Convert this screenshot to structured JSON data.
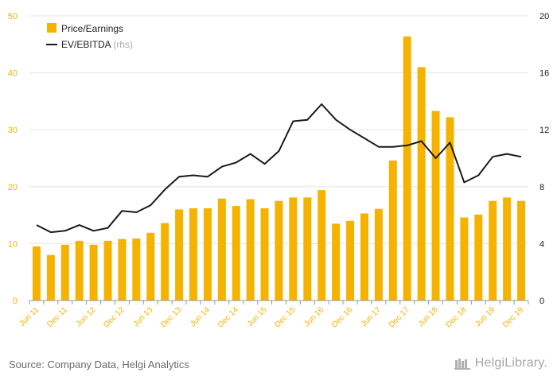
{
  "chart_data": {
    "type": "bar",
    "categories": [
      "Jun 11",
      "Sep 11",
      "Dec 11",
      "Mar 12",
      "Jun 12",
      "Sep 12",
      "Dec 12",
      "Mar 13",
      "Jun 13",
      "Sep 13",
      "Dec 13",
      "Mar 14",
      "Jun 14",
      "Sep 14",
      "Dec 14",
      "Mar 15",
      "Jun 15",
      "Sep 15",
      "Dec 15",
      "Mar 16",
      "Jun 16",
      "Sep 16",
      "Dec 16",
      "Mar 17",
      "Jun 17",
      "Sep 17",
      "Dec 17",
      "Mar 18",
      "Jun 18",
      "Sep 18",
      "Dec 18",
      "Mar 19",
      "Jun 19",
      "Sep 19",
      "Dec 19"
    ],
    "tick_labels": [
      "Jun 11",
      "",
      "Dec 11",
      "",
      "Jun 12",
      "",
      "Dec 12",
      "",
      "Jun 13",
      "",
      "Dec 13",
      "",
      "Jun 14",
      "",
      "Dec 14",
      "",
      "Jun 15",
      "",
      "Dec 15",
      "",
      "Jun 16",
      "",
      "Dec 16",
      "",
      "Jun 17",
      "",
      "Dec 17",
      "",
      "Jun 18",
      "",
      "Dec 18",
      "",
      "Jun 19",
      "",
      "Dec 19"
    ],
    "series": [
      {
        "name": "Price/Earnings",
        "type": "bar",
        "axis": "left",
        "color": "#f5b300",
        "values": [
          9.5,
          8.0,
          9.8,
          10.5,
          9.8,
          10.5,
          10.8,
          10.9,
          11.9,
          13.6,
          16.0,
          16.2,
          16.2,
          17.9,
          16.6,
          17.8,
          16.2,
          17.5,
          18.1,
          18.1,
          19.4,
          13.5,
          14.0,
          15.3,
          16.1,
          24.6,
          46.4,
          41.0,
          33.3,
          32.2,
          14.6,
          15.1,
          17.5,
          18.1,
          17.5
        ]
      },
      {
        "name": "EV/EBITDA",
        "suffix": "(rhs)",
        "type": "line",
        "axis": "right",
        "color": "#1a1a1a",
        "values": [
          5.3,
          4.8,
          4.9,
          5.3,
          4.9,
          5.1,
          6.3,
          6.2,
          6.7,
          7.8,
          8.7,
          8.8,
          8.7,
          9.4,
          9.7,
          10.3,
          9.6,
          10.5,
          12.6,
          12.7,
          13.8,
          12.7,
          12.0,
          11.4,
          10.8,
          10.8,
          10.9,
          11.2,
          10.0,
          11.1,
          8.3,
          8.8,
          10.1,
          10.3,
          10.1
        ]
      }
    ],
    "y_left": {
      "min": 0,
      "max": 50,
      "ticks": [
        0,
        10,
        20,
        30,
        40,
        50
      ],
      "color": "#f5b300"
    },
    "y_right": {
      "min": 0,
      "max": 20,
      "ticks": [
        0,
        4,
        8,
        12,
        16,
        20
      ],
      "color": "#1a1a1a"
    },
    "grid": true,
    "legend_position": "top-left"
  },
  "source": "Source: Company Data, Helgi Analytics",
  "brand": "HelgiLibrary."
}
